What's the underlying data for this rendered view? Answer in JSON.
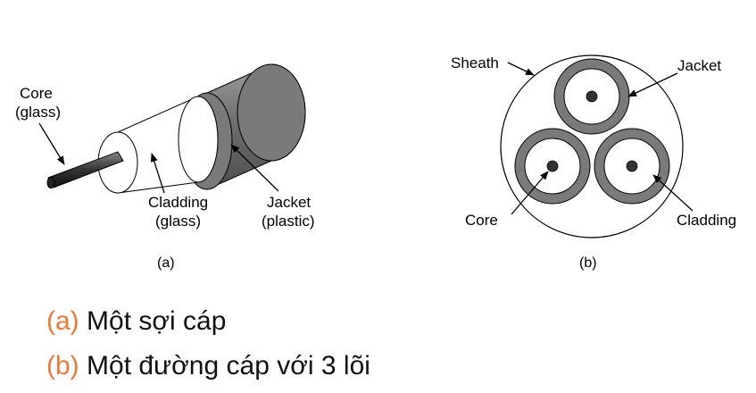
{
  "figure_a": {
    "core_label_1": "Core",
    "core_label_2": "(glass)",
    "cladding_label_1": "Cladding",
    "cladding_label_2": "(glass)",
    "jacket_label_1": "Jacket",
    "jacket_label_2": "(plastic)",
    "caption": "(a)"
  },
  "figure_b": {
    "sheath_label": "Sheath",
    "jacket_label": "Jacket",
    "core_label": "Core",
    "cladding_label": "Cladding",
    "caption": "(b)"
  },
  "bullets": [
    {
      "mark": "(a)",
      "text": "Một sợi cáp"
    },
    {
      "mark": "(b)",
      "text": "Một đường cáp với 3 lõi"
    }
  ],
  "colors": {
    "accent": "#E87A3A",
    "jacket_gray": "#7a7a7a",
    "core_dark": "#333333"
  }
}
